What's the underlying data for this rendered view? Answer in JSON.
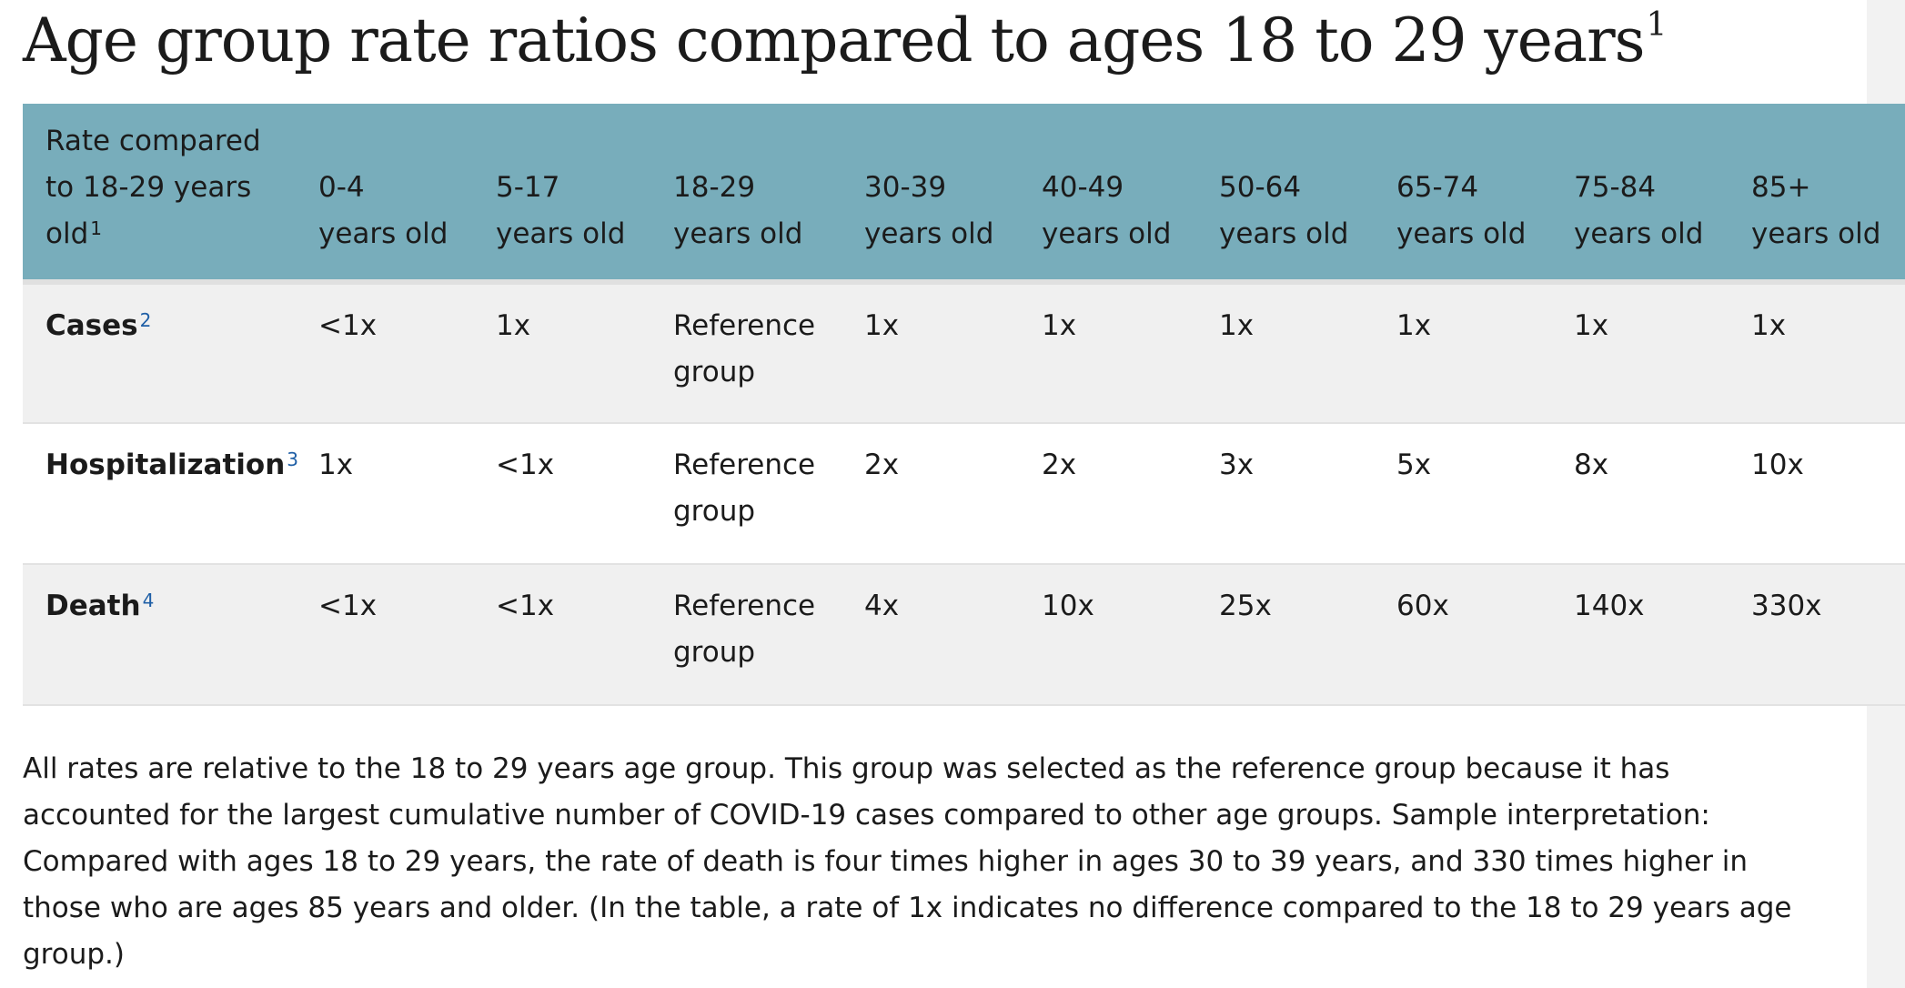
{
  "title": {
    "text": "Age group rate ratios compared to ages 18 to 29 years",
    "footnote": "1"
  },
  "table": {
    "header": {
      "first": {
        "text": "Rate compared to 18-29 years old",
        "footnote": "1"
      },
      "columns": [
        {
          "range": "0-4",
          "unit": "years old"
        },
        {
          "range": "5-17",
          "unit": "years old"
        },
        {
          "range": "18-29",
          "unit": "years old"
        },
        {
          "range": "30-39",
          "unit": "years old"
        },
        {
          "range": "40-49",
          "unit": "years old"
        },
        {
          "range": "50-64",
          "unit": "years old"
        },
        {
          "range": "65-74",
          "unit": "years old"
        },
        {
          "range": "75-84",
          "unit": "years old"
        },
        {
          "range": "85+",
          "unit": "years old"
        }
      ]
    },
    "rows": [
      {
        "label": "Cases",
        "footnote": "2",
        "values": [
          "<1x",
          "1x",
          "Reference group",
          "1x",
          "1x",
          "1x",
          "1x",
          "1x",
          "1x"
        ]
      },
      {
        "label": "Hospitalization",
        "footnote": "3",
        "values": [
          "1x",
          "<1x",
          "Reference group",
          "2x",
          "2x",
          "3x",
          "5x",
          "8x",
          "10x"
        ]
      },
      {
        "label": "Death",
        "footnote": "4",
        "values": [
          "<1x",
          "<1x",
          "Reference group",
          "4x",
          "10x",
          "25x",
          "60x",
          "140x",
          "330x"
        ]
      }
    ]
  },
  "note": "All rates are relative to the 18 to 29 years age group. This group was selected as the reference group because it has accounted for the largest cumulative number of COVID-19 cases compared to other age groups. Sample interpretation: Compared with ages 18 to 29 years, the rate of death is four times higher in ages 30 to 39 years, and 330 times higher in those who are ages 85 years and older. (In the table, a rate of 1x indicates no difference compared to the 18 to 29 years age group.)",
  "colors": {
    "header_bg": "#78adbb",
    "row_shade": "#f0f0f0",
    "footnote_link": "#1f5fa6",
    "text": "#1b1b1b"
  }
}
